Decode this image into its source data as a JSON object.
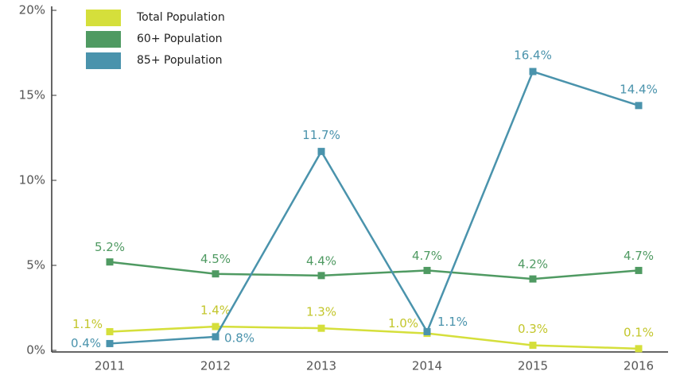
{
  "chart_data": {
    "type": "line",
    "categories": [
      "2011",
      "2012",
      "2013",
      "2014",
      "2015",
      "2016"
    ],
    "series": [
      {
        "name": "Total Population",
        "color": "#d5df3b",
        "values": [
          1.1,
          1.4,
          1.3,
          1.0,
          0.3,
          0.1
        ],
        "value_labels": [
          "1.1%",
          "1.4%",
          "1.3%",
          "1.0%",
          "0.3%",
          "0.1%"
        ]
      },
      {
        "name": "60+ Population",
        "color": "#4f9a62",
        "values": [
          5.2,
          4.5,
          4.4,
          4.7,
          4.2,
          4.7
        ],
        "value_labels": [
          "5.2%",
          "4.5%",
          "4.4%",
          "4.7%",
          "4.2%",
          "4.7%"
        ]
      },
      {
        "name": "85+ Population",
        "color": "#4a93ac",
        "values": [
          0.4,
          0.8,
          11.7,
          1.1,
          16.4,
          14.4
        ],
        "value_labels": [
          "0.4%",
          "0.8%",
          "11.7%",
          "1.1%",
          "16.4%",
          "14.4%"
        ]
      }
    ],
    "ylim": [
      0,
      20
    ],
    "yticks": [
      {
        "value": 0,
        "label": "0%"
      },
      {
        "value": 5,
        "label": "5%"
      },
      {
        "value": 10,
        "label": "10%"
      },
      {
        "value": 15,
        "label": "15%"
      },
      {
        "value": 20,
        "label": "20%"
      }
    ],
    "legend": "top-left"
  }
}
